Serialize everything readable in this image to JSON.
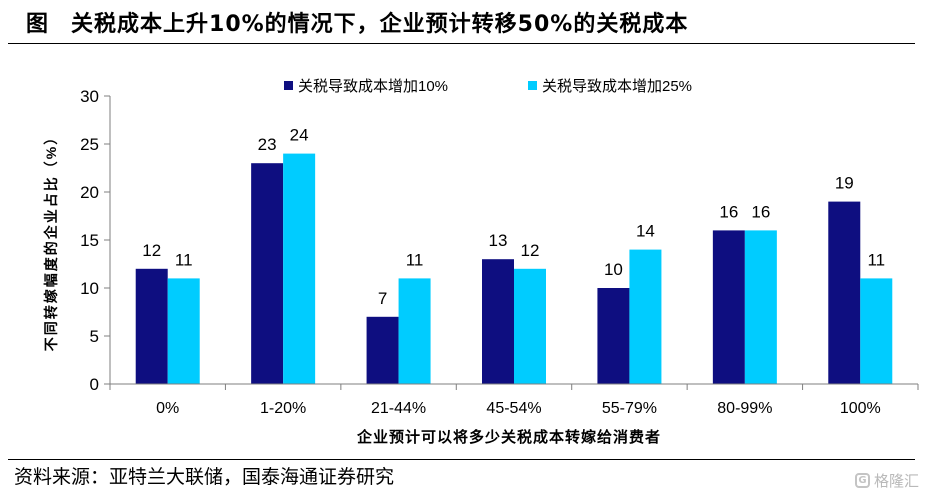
{
  "title": {
    "lead": "图",
    "text": "关税成本上升10%的情况下，企业预计转移50%的关税成本"
  },
  "source": "资料来源：亚特兰大联储，国泰海通证券研究",
  "watermark": {
    "text": "格隆汇",
    "color": "#bdbdbd",
    "icon": "gelonghui-logo-icon"
  },
  "colors": {
    "series1": "#0e0e80",
    "series2": "#00ccff",
    "axis": "#7f7f7f"
  },
  "chart_data": {
    "type": "bar",
    "categories": [
      "0%",
      "1-20%",
      "21-44%",
      "45-54%",
      "55-79%",
      "80-99%",
      "100%"
    ],
    "series": [
      {
        "name": "关税导致成本增加10%",
        "values": [
          12,
          23,
          7,
          13,
          10,
          16,
          19
        ]
      },
      {
        "name": "关税导致成本增加25%",
        "values": [
          11,
          24,
          11,
          12,
          14,
          16,
          11
        ]
      }
    ],
    "xlabel": "企业预计可以将多少关税成本转嫁给消费者",
    "ylabel": "不同转嫁幅度的企业占比（%）",
    "ylim": [
      0,
      30
    ],
    "yticks": [
      0,
      5,
      10,
      15,
      20,
      25,
      30
    ],
    "grid": false,
    "legend": "top"
  }
}
